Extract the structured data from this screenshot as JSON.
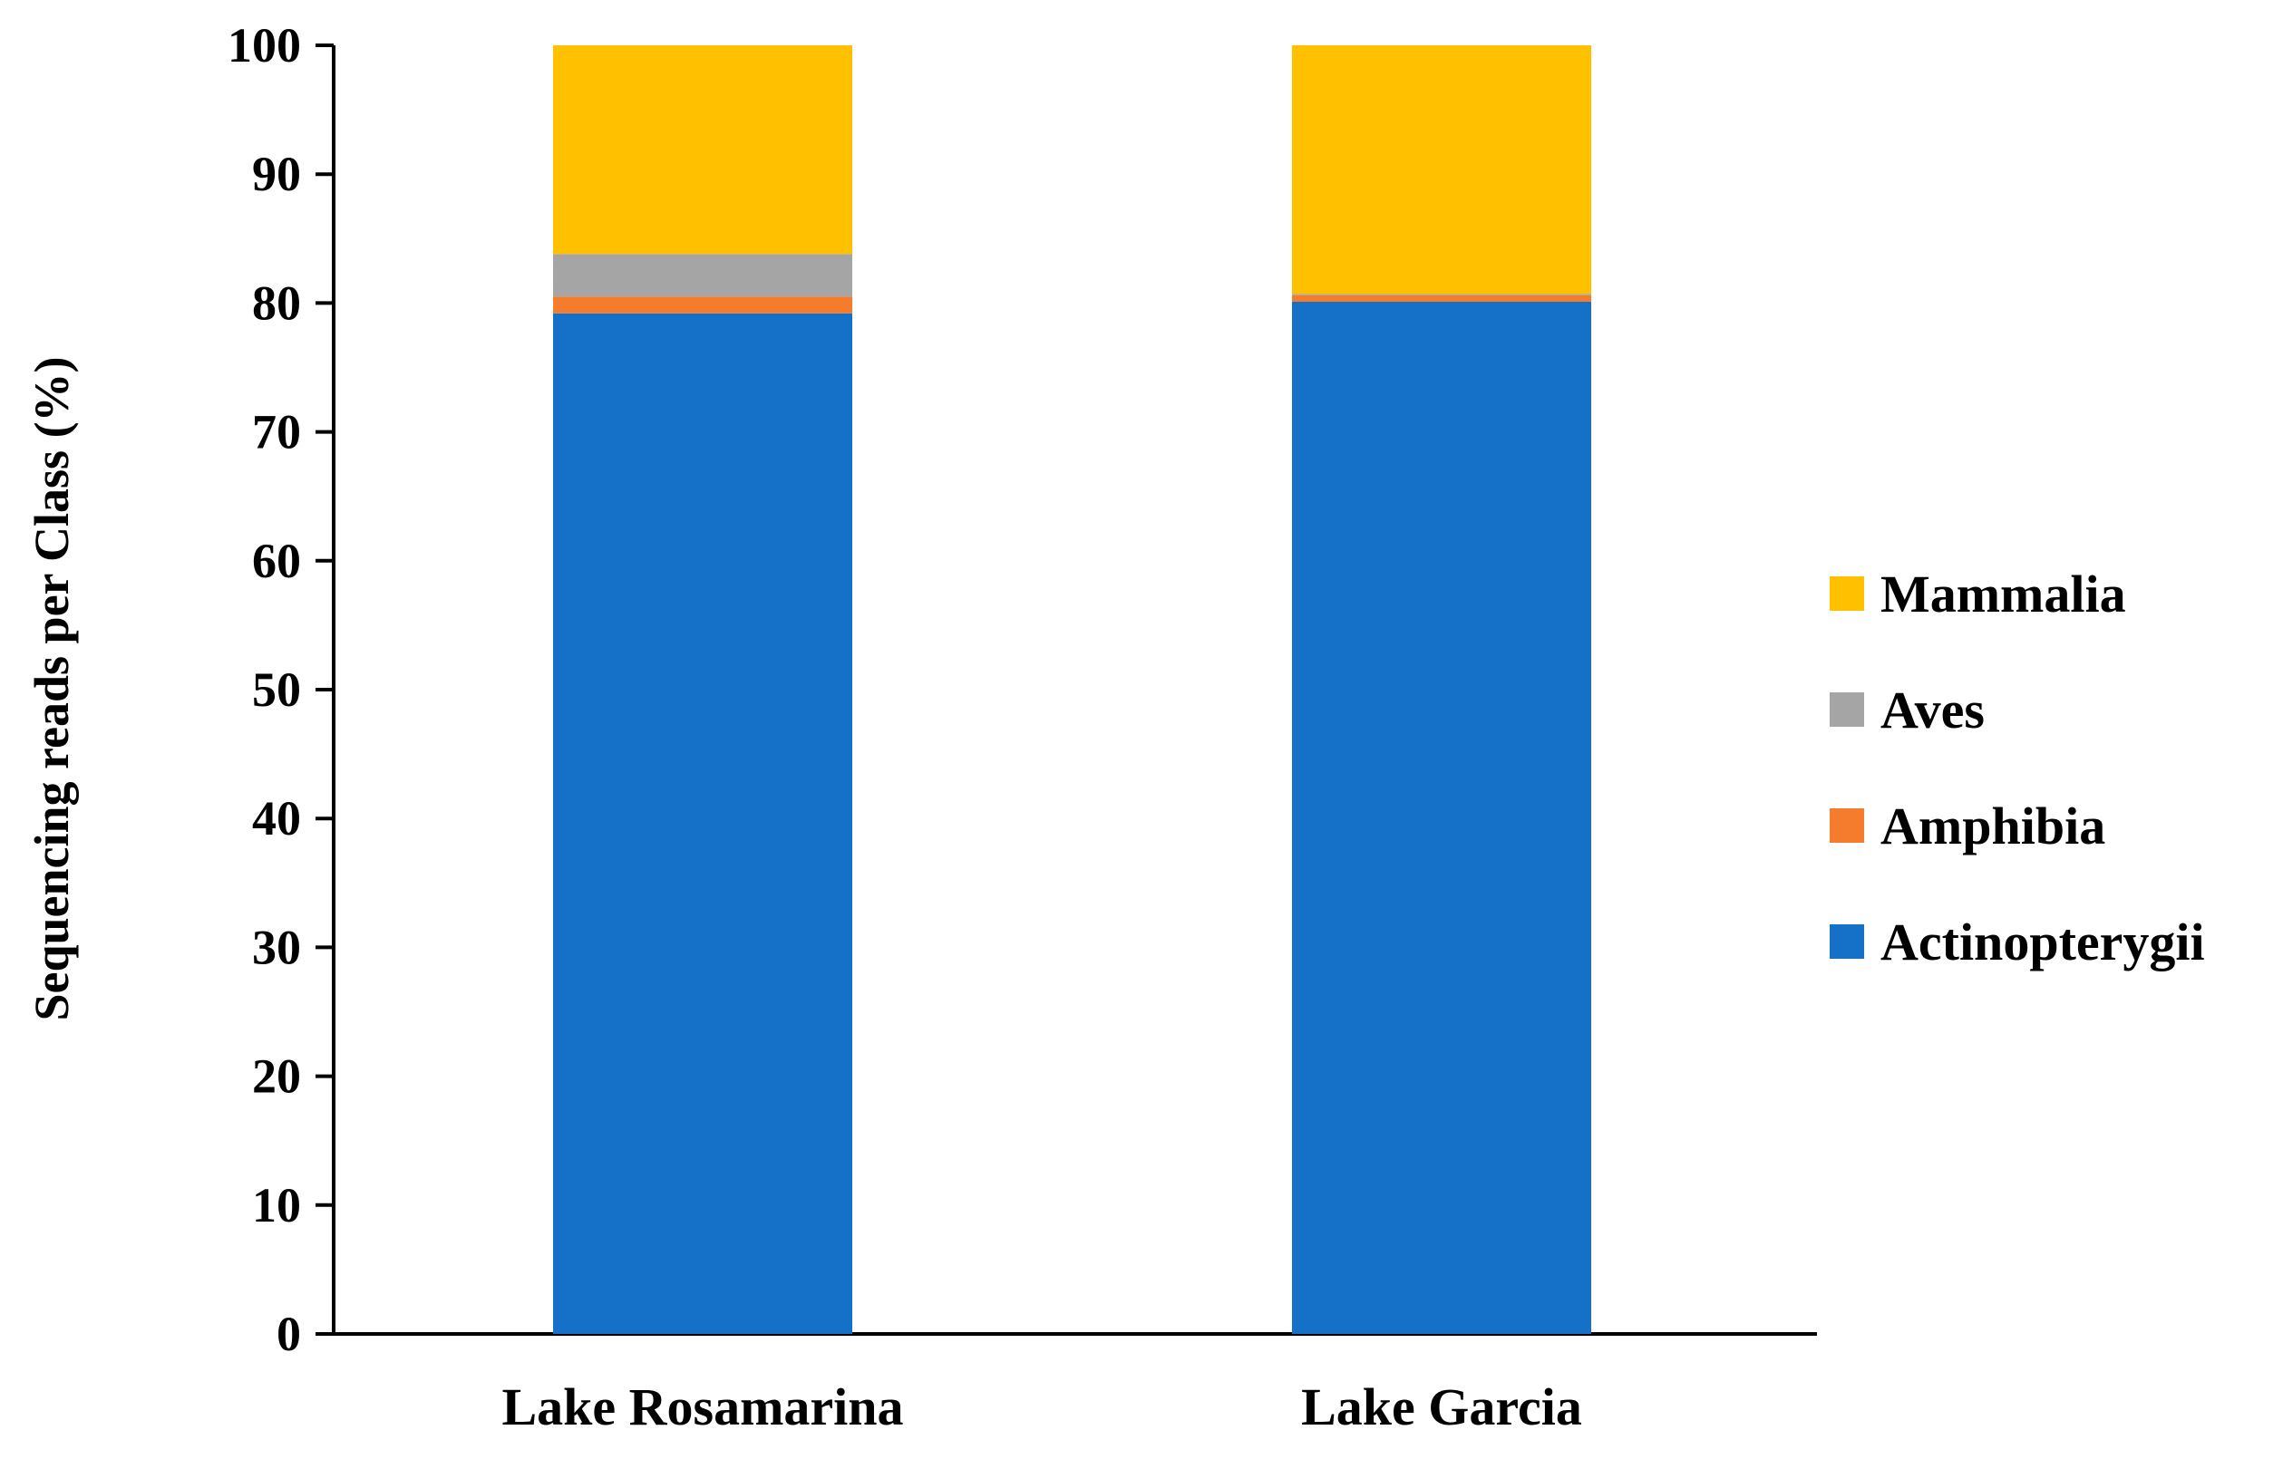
{
  "chart_data": {
    "type": "bar",
    "stacked": true,
    "categories": [
      "Lake Rosamarina",
      "Lake Garcia"
    ],
    "series": [
      {
        "name": "Actinopterygii",
        "values": [
          79.2,
          80.1
        ],
        "color": "#1570C8"
      },
      {
        "name": "Amphibia",
        "values": [
          1.3,
          0.5
        ],
        "color": "#F47C2C"
      },
      {
        "name": "Aves",
        "values": [
          3.3,
          0.1
        ],
        "color": "#A5A5A5"
      },
      {
        "name": "Mammalia",
        "values": [
          16.2,
          19.3
        ],
        "color": "#FFC000"
      }
    ],
    "legend_order": [
      "Mammalia",
      "Aves",
      "Amphibia",
      "Actinopterygii"
    ],
    "title": "",
    "xlabel": "",
    "ylabel": "Sequencing reads per Class (%)",
    "ylim": [
      0,
      100
    ],
    "yticks": [
      "0",
      "10",
      "20",
      "30",
      "40",
      "50",
      "60",
      "70",
      "80",
      "90",
      "100"
    ],
    "grid": false,
    "legend_position": "right"
  }
}
